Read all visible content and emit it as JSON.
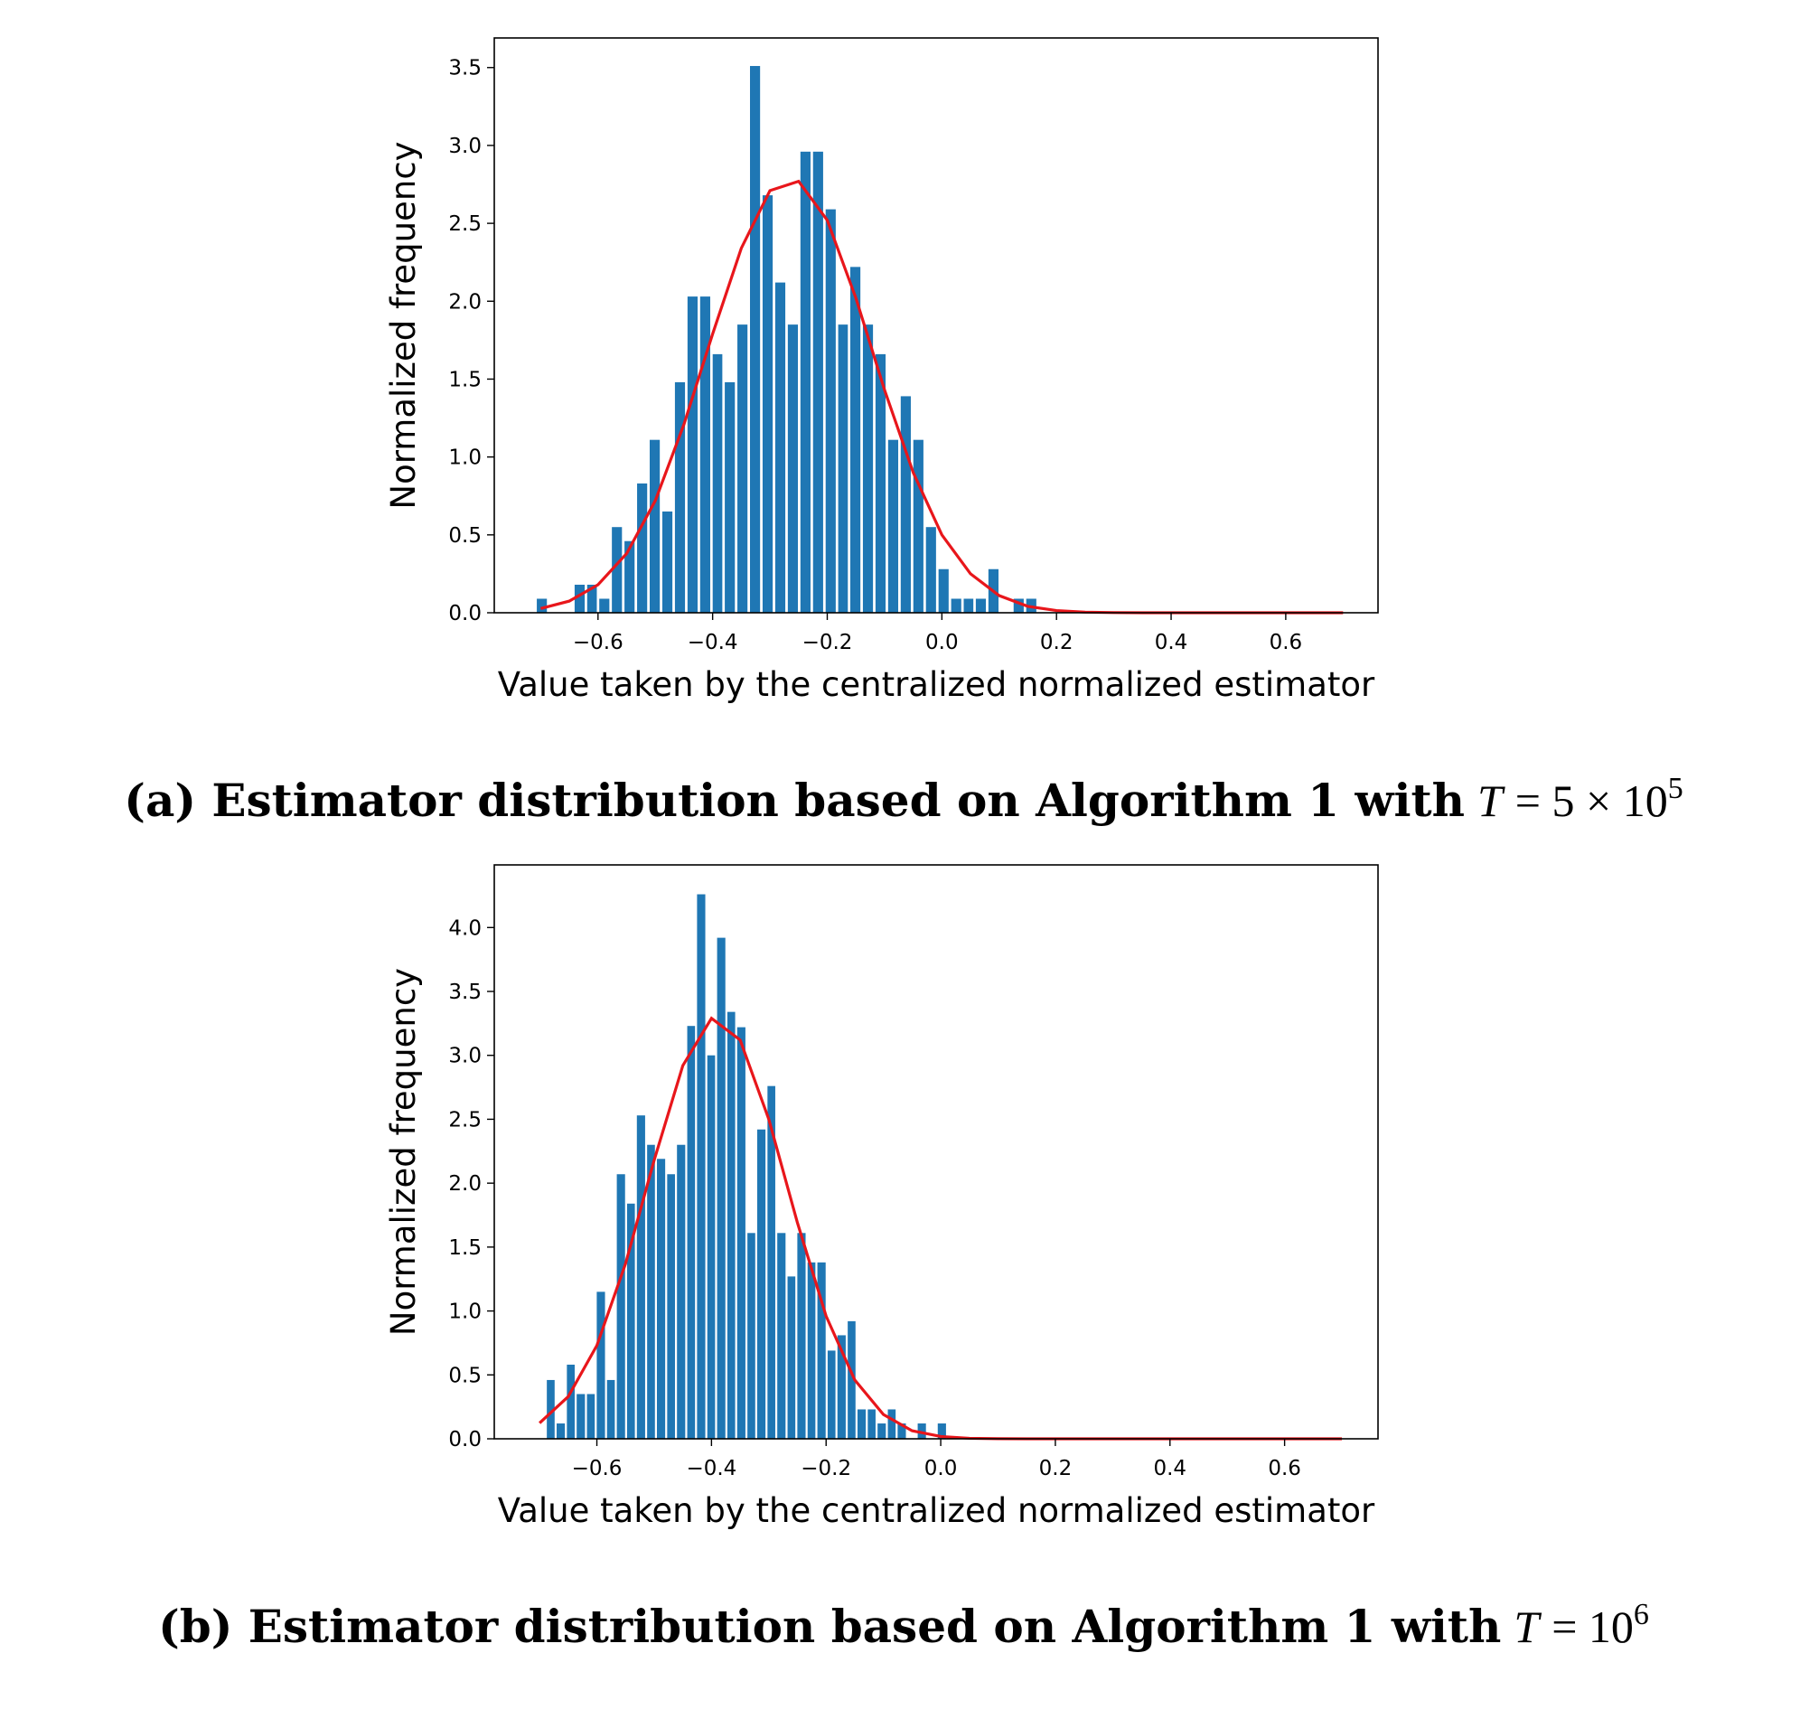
{
  "chart_data": [
    {
      "type": "histogram",
      "xlabel": "Value taken by the centralized normalized estimator",
      "ylabel": "Normalized frequency",
      "caption": {
        "text": "(a) Estimator distribution based on Algorithm 1 with",
        "var": "T",
        "expr": "= 5 × 10",
        "exp": "5"
      },
      "color": "#1f77b4",
      "bins": [
        -0.709,
        -0.687,
        -0.665,
        -0.643,
        -0.621,
        -0.6,
        -0.578,
        -0.556,
        -0.534,
        -0.512,
        -0.49,
        -0.468,
        -0.446,
        -0.424,
        -0.402,
        -0.381,
        -0.359,
        -0.337,
        -0.315,
        -0.293,
        -0.271,
        -0.249,
        -0.227,
        -0.205,
        -0.183,
        -0.162,
        -0.14,
        -0.118,
        -0.096,
        -0.074,
        -0.052,
        -0.03,
        -0.008,
        0.014,
        0.036,
        0.057,
        0.079,
        0.101,
        0.123,
        0.145,
        0.167
      ],
      "values": [
        0.09,
        0,
        0,
        0.18,
        0.18,
        0.09,
        0.55,
        0.46,
        0.83,
        1.11,
        0.65,
        1.48,
        2.03,
        2.03,
        1.66,
        1.48,
        1.85,
        3.51,
        2.68,
        2.12,
        1.85,
        2.96,
        2.96,
        2.59,
        1.85,
        2.22,
        1.85,
        1.66,
        1.11,
        1.39,
        1.11,
        0.55,
        0.28,
        0.09,
        0.09,
        0.09,
        0.28,
        0,
        0.09,
        0.09
      ],
      "curve": {
        "color": "#e8161b",
        "x": [
          -0.7,
          -0.65,
          -0.6,
          -0.55,
          -0.5,
          -0.45,
          -0.4,
          -0.35,
          -0.3,
          -0.25,
          -0.2,
          -0.15,
          -0.1,
          -0.05,
          0,
          0.05,
          0.1,
          0.15,
          0.2,
          0.25,
          0.3,
          0.35,
          0.4,
          0.45,
          0.5,
          0.55,
          0.6,
          0.65,
          0.7
        ],
        "values": [
          0.027,
          0.075,
          0.18,
          0.38,
          0.72,
          1.21,
          1.79,
          2.34,
          2.71,
          2.77,
          2.52,
          2.02,
          1.43,
          0.9,
          0.5,
          0.25,
          0.11,
          0.041,
          0.014,
          0.004,
          0.001,
          0,
          0,
          0,
          0,
          0,
          0,
          0,
          0
        ]
      },
      "xlim": [
        -0.781,
        0.761
      ],
      "ylim": [
        0,
        3.69
      ],
      "xticks": [
        {
          "value": -0.6,
          "label": "−0.6"
        },
        {
          "value": -0.4,
          "label": "−0.4"
        },
        {
          "value": -0.2,
          "label": "−0.2"
        },
        {
          "value": 0,
          "label": "0.0"
        },
        0.2,
        0.4,
        0.6
      ],
      "yticks": [
        {
          "value": 0,
          "label": "0.0"
        },
        0.5,
        {
          "value": 1,
          "label": "1.0"
        },
        1.5,
        {
          "value": 2,
          "label": "2.0"
        },
        2.5,
        {
          "value": 3,
          "label": "3.0"
        },
        3.5
      ]
    },
    {
      "type": "histogram",
      "xlabel": "Value taken by the centralized normalized estimator",
      "ylabel": "Normalized frequency",
      "caption": {
        "text": "(b) Estimator distribution based on Algorithm 1 with",
        "var": "T",
        "expr": "= 10",
        "exp": "6"
      },
      "color": "#1f77b4",
      "bins": [
        -0.689,
        -0.672,
        -0.654,
        -0.637,
        -0.619,
        -0.602,
        -0.584,
        -0.567,
        -0.549,
        -0.532,
        -0.514,
        -0.497,
        -0.479,
        -0.462,
        -0.444,
        -0.427,
        -0.409,
        -0.392,
        -0.374,
        -0.357,
        -0.339,
        -0.322,
        -0.304,
        -0.287,
        -0.269,
        -0.252,
        -0.234,
        -0.217,
        -0.199,
        -0.182,
        -0.164,
        -0.147,
        -0.129,
        -0.112,
        -0.094,
        -0.077,
        -0.059,
        -0.042,
        -0.024,
        -0.007,
        0.011
      ],
      "values": [
        0.46,
        0.12,
        0.58,
        0.35,
        0.35,
        1.15,
        0.46,
        2.07,
        1.84,
        2.53,
        2.3,
        2.19,
        2.07,
        2.3,
        3.23,
        4.26,
        3.0,
        3.92,
        3.34,
        3.22,
        1.61,
        2.42,
        2.76,
        1.61,
        1.27,
        1.61,
        1.38,
        1.38,
        0.69,
        0.81,
        0.92,
        0.23,
        0.23,
        0.12,
        0.23,
        0.12,
        0,
        0.12,
        0,
        0.12
      ],
      "curve": {
        "color": "#e8161b",
        "x": [
          -0.7,
          -0.65,
          -0.6,
          -0.55,
          -0.5,
          -0.45,
          -0.4,
          -0.35,
          -0.3,
          -0.25,
          -0.2,
          -0.15,
          -0.1,
          -0.05,
          0,
          0.05,
          0.1,
          0.15,
          0.2,
          0.25,
          0.3,
          0.35,
          0.4,
          0.45,
          0.5,
          0.55,
          0.6,
          0.65,
          0.7
        ],
        "values": [
          0.123,
          0.33,
          0.73,
          1.37,
          2.18,
          2.92,
          3.29,
          3.12,
          2.5,
          1.69,
          0.96,
          0.46,
          0.19,
          0.063,
          0.018,
          0.004,
          0.001,
          0,
          0,
          0,
          0,
          0,
          0,
          0,
          0,
          0,
          0,
          0,
          0
        ]
      },
      "xlim": [
        -0.779,
        0.763
      ],
      "ylim": [
        0,
        4.49
      ],
      "xticks": [
        {
          "value": -0.6,
          "label": "−0.6"
        },
        {
          "value": -0.4,
          "label": "−0.4"
        },
        {
          "value": -0.2,
          "label": "−0.2"
        },
        {
          "value": 0,
          "label": "0.0"
        },
        0.2,
        0.4,
        0.6
      ],
      "yticks": [
        {
          "value": 0,
          "label": "0.0"
        },
        0.5,
        {
          "value": 1,
          "label": "1.0"
        },
        1.5,
        {
          "value": 2,
          "label": "2.0"
        },
        2.5,
        {
          "value": 3,
          "label": "3.0"
        },
        3.5,
        {
          "value": 4,
          "label": "4.0"
        }
      ]
    }
  ]
}
